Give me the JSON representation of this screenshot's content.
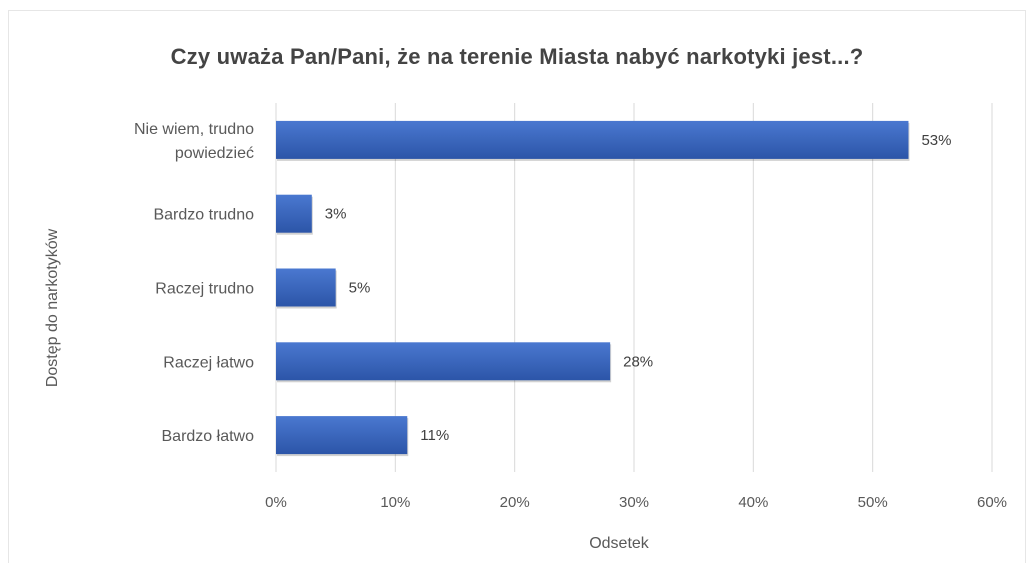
{
  "chart_data": {
    "type": "bar",
    "orientation": "horizontal",
    "title": "Czy uważa Pan/Pani, że na terenie Miasta nabyć narkotyki jest...?",
    "xlabel": "Odsetek",
    "ylabel": "Dostęp do narkotyków",
    "categories": [
      [
        "Nie wiem, trudno",
        "powiedzieć"
      ],
      [
        "Bardzo trudno"
      ],
      [
        "Raczej trudno"
      ],
      [
        "Raczej łatwo"
      ],
      [
        "Bardzo łatwo"
      ]
    ],
    "values": [
      53,
      3,
      5,
      28,
      11
    ],
    "data_labels": [
      "53%",
      "3%",
      "5%",
      "28%",
      "11%"
    ],
    "xlim": [
      0,
      60
    ],
    "x_ticks": [
      "0%",
      "10%",
      "20%",
      "30%",
      "40%",
      "50%",
      "60%"
    ],
    "grid": "vertical",
    "legend": "none",
    "colors": {
      "bar_top": "#4a78d0",
      "bar_bottom": "#2c55a8",
      "grid": "#d9d9d9"
    }
  }
}
